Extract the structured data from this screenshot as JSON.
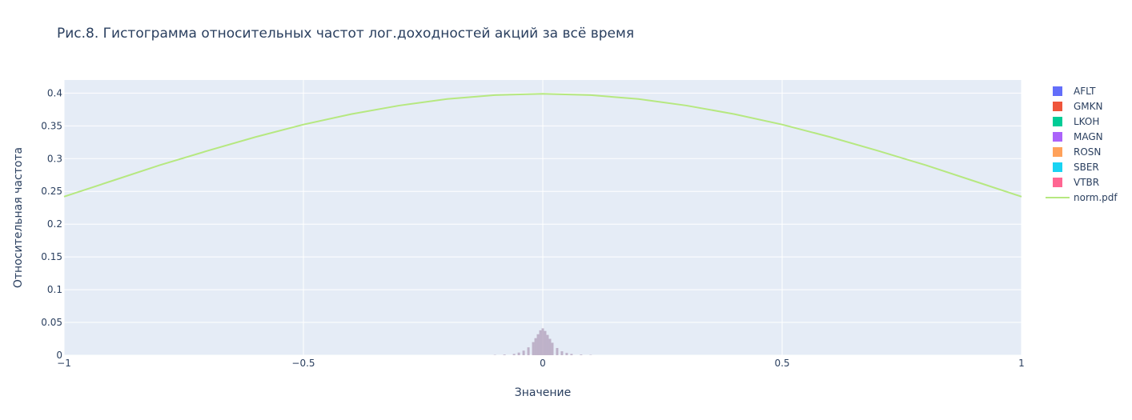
{
  "chart_data": {
    "type": "bar",
    "title": "Рис.8. Гистограмма относительных частот лог.доходностей акций за всё время",
    "xlabel": "Значение",
    "ylabel": "Относительная частота",
    "xlim": [
      -1,
      1
    ],
    "ylim": [
      0,
      0.42
    ],
    "x_ticks": [
      -1,
      -0.5,
      0,
      0.5,
      1
    ],
    "x_tick_labels": [
      "−1",
      "−0.5",
      "0",
      "0.5",
      "1"
    ],
    "y_ticks": [
      0,
      0.05,
      0.1,
      0.15,
      0.2,
      0.25,
      0.3,
      0.35,
      0.4
    ],
    "y_tick_labels": [
      "0",
      "0.05",
      "0.1",
      "0.15",
      "0.2",
      "0.25",
      "0.3",
      "0.35",
      "0.4"
    ],
    "grid": true,
    "legend_position": "right",
    "histogram_series": [
      {
        "name": "AFLT",
        "color": "#636efa"
      },
      {
        "name": "GMKN",
        "color": "#EF553B"
      },
      {
        "name": "LKOH",
        "color": "#00cc96"
      },
      {
        "name": "MAGN",
        "color": "#ab63fa"
      },
      {
        "name": "ROSN",
        "color": "#FFA15A"
      },
      {
        "name": "SBER",
        "color": "#19d3f3"
      },
      {
        "name": "VTBR",
        "color": "#FF6692"
      }
    ],
    "histogram_bins": {
      "x": [
        -0.1,
        -0.08,
        -0.06,
        -0.05,
        -0.04,
        -0.03,
        -0.02,
        -0.015,
        -0.01,
        -0.005,
        0,
        0.005,
        0.01,
        0.015,
        0.02,
        0.03,
        0.04,
        0.05,
        0.06,
        0.08,
        0.1
      ],
      "y": [
        0.0005,
        0.001,
        0.002,
        0.004,
        0.007,
        0.012,
        0.02,
        0.026,
        0.032,
        0.038,
        0.041,
        0.037,
        0.031,
        0.025,
        0.019,
        0.011,
        0.006,
        0.0035,
        0.002,
        0.001,
        0.0005
      ]
    },
    "line_series": {
      "name": "norm.pdf",
      "color": "#b6e880",
      "x": [
        -1,
        -0.9,
        -0.8,
        -0.7,
        -0.6,
        -0.5,
        -0.4,
        -0.3,
        -0.2,
        -0.1,
        0,
        0.1,
        0.2,
        0.3,
        0.4,
        0.5,
        0.6,
        0.7,
        0.8,
        0.9,
        1
      ],
      "y": [
        0.242,
        0.266,
        0.29,
        0.312,
        0.333,
        0.352,
        0.368,
        0.381,
        0.391,
        0.397,
        0.399,
        0.397,
        0.391,
        0.381,
        0.368,
        0.352,
        0.333,
        0.312,
        0.29,
        0.266,
        0.242
      ]
    }
  }
}
